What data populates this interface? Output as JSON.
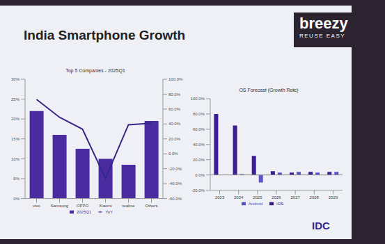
{
  "title": "India Smartphone Growth",
  "logo": "breezy",
  "logo_tagline": "REUSE EASY",
  "footer_logo": "IDC",
  "chart_data": [
    {
      "type": "bar",
      "title": "Top 5 Companies - 2025Q1",
      "categories": [
        "vivo",
        "Samsung",
        "OPPO",
        "Xiaomi",
        "realme",
        "Others"
      ],
      "series": [
        {
          "name": "2025Q1",
          "type": "bar",
          "color": "#4a2ca0",
          "values": [
            22,
            16,
            12.5,
            10,
            8.5,
            19.5
          ]
        },
        {
          "name": "YoY",
          "type": "line",
          "axis": "y2",
          "color": "#35288a",
          "values": [
            73,
            49,
            33,
            -33,
            39,
            41
          ]
        }
      ],
      "ylim": [
        0,
        30
      ],
      "yticks": [
        {
          "value": 0,
          "label": "0%"
        },
        {
          "value": 5,
          "label": "5%"
        },
        {
          "value": 10,
          "label": "10%"
        },
        {
          "value": 15,
          "label": "15%"
        },
        {
          "value": 20,
          "label": "20%"
        },
        {
          "value": 25,
          "label": "25%"
        },
        {
          "value": 30,
          "label": "30%"
        }
      ],
      "y2lim": [
        -60,
        100
      ],
      "y2ticks": [
        {
          "value": -60,
          "label": "-60.0%"
        },
        {
          "value": -40,
          "label": "-40.0%"
        },
        {
          "value": -20,
          "label": "-20.0%"
        },
        {
          "value": 0,
          "label": "0.0%"
        },
        {
          "value": 20,
          "label": "20.0%"
        },
        {
          "value": 40,
          "label": "40.0%"
        },
        {
          "value": 60,
          "label": "60.0%"
        },
        {
          "value": 80,
          "label": "80.0%"
        },
        {
          "value": 100,
          "label": "100.0%"
        }
      ],
      "legend": "bottom"
    },
    {
      "type": "bar",
      "title": "OS Forecast (Growth Rate)",
      "categories": [
        "2023",
        "2024",
        "2025",
        "2026",
        "2027",
        "2028",
        "2029"
      ],
      "series": [
        {
          "name": "iOS",
          "color": "#3b1f8f",
          "values": [
            80,
            65,
            25,
            5,
            3,
            4,
            4
          ]
        },
        {
          "name": "Android",
          "color": "#5b54c9",
          "values": [
            0,
            1,
            -10,
            3,
            4,
            3,
            4
          ]
        }
      ],
      "ylim": [
        -20,
        100
      ],
      "yticks": [
        {
          "value": -20,
          "label": "-20.0%"
        },
        {
          "value": 0,
          "label": "0.0%"
        },
        {
          "value": 20,
          "label": "20.0%"
        },
        {
          "value": 40,
          "label": "40.0%"
        },
        {
          "value": 60,
          "label": "60.0%"
        },
        {
          "value": 80,
          "label": "80.0%"
        },
        {
          "value": 100,
          "label": "100.0%"
        }
      ],
      "legend": "bottom"
    }
  ]
}
